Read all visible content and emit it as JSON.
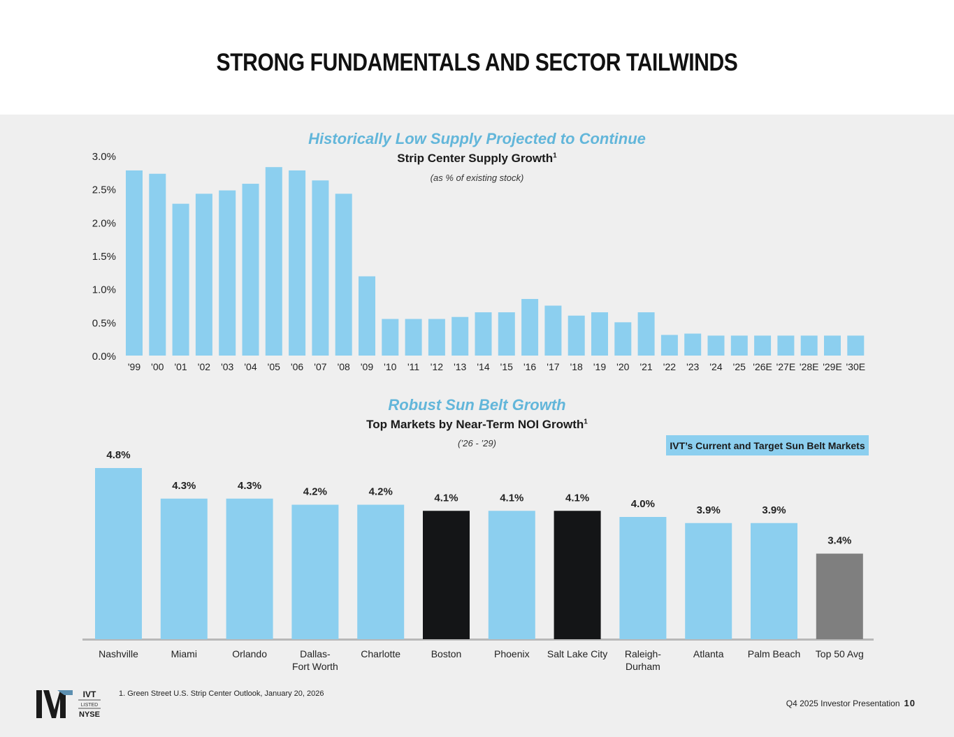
{
  "page": {
    "title": "STRONG FUNDAMENTALS AND SECTOR TAILWINDS",
    "footnote": "1.  Green Street U.S. Strip Center Outlook, January 20, 2026",
    "footer_label": "Q4 2025 Investor Presentation",
    "page_number": "10",
    "logo": {
      "mark": "IVT",
      "ticker": "IVT",
      "listed": "LISTED",
      "exchange": "NYSE"
    }
  },
  "colors": {
    "accent": "#62b6da",
    "bar": "#8ccfef",
    "highlight": "#141517",
    "benchmark": "#7f7f7f",
    "panel": "#efefef"
  },
  "chart_data": [
    {
      "type": "bar",
      "heading": "Historically Low Supply Projected to Continue",
      "title": "Strip Center Supply Growth",
      "title_sup": "1",
      "subtitle": "(as % of existing stock)",
      "categories": [
        "'99",
        "'00",
        "'01",
        "'02",
        "'03",
        "'04",
        "'05",
        "'06",
        "'07",
        "'08",
        "'09",
        "'10",
        "'11",
        "'12",
        "'13",
        "'14",
        "'15",
        "'16",
        "'17",
        "'18",
        "'19",
        "'20",
        "'21",
        "'22",
        "'23",
        "'24",
        "'25",
        "'26E",
        "'27E",
        "'28E",
        "'29E",
        "'30E"
      ],
      "values": [
        2.78,
        2.73,
        2.28,
        2.43,
        2.48,
        2.58,
        2.83,
        2.78,
        2.63,
        2.43,
        1.19,
        0.55,
        0.55,
        0.55,
        0.58,
        0.65,
        0.65,
        0.85,
        0.75,
        0.6,
        0.65,
        0.5,
        0.65,
        0.31,
        0.33,
        0.3,
        0.3,
        0.3,
        0.3,
        0.3,
        0.3,
        0.3
      ],
      "yticks": [
        "0.0%",
        "0.5%",
        "1.0%",
        "1.5%",
        "2.0%",
        "2.5%",
        "3.0%"
      ],
      "ylim": [
        0,
        3.0
      ],
      "grid": false
    },
    {
      "type": "bar",
      "heading": "Robust Sun Belt Growth",
      "title": "Top Markets by Near-Term NOI Growth",
      "title_sup": "1",
      "subtitle": "(’26 - ’29)",
      "legend": "IVT’s Current and Target Sun Belt Markets",
      "categories": [
        "Nashville",
        "Miami",
        "Orlando",
        "Dallas-\nFort Worth",
        "Charlotte",
        "Boston",
        "Phoenix",
        "Salt Lake City",
        "Raleigh-\nDurham",
        "Atlanta",
        "Palm Beach",
        "Top 50 Avg"
      ],
      "values": [
        4.8,
        4.3,
        4.3,
        4.2,
        4.2,
        4.1,
        4.1,
        4.1,
        4.0,
        3.9,
        3.9,
        3.4
      ],
      "labels": [
        "4.8%",
        "4.3%",
        "4.3%",
        "4.2%",
        "4.2%",
        "4.1%",
        "4.1%",
        "4.1%",
        "4.0%",
        "3.9%",
        "3.9%",
        "3.4%"
      ],
      "kinds": [
        "sunbelt",
        "sunbelt",
        "sunbelt",
        "sunbelt",
        "sunbelt",
        "other",
        "sunbelt",
        "other",
        "sunbelt",
        "sunbelt",
        "sunbelt",
        "avg"
      ],
      "ylim": [
        2.0,
        4.8
      ],
      "grid": false
    }
  ]
}
